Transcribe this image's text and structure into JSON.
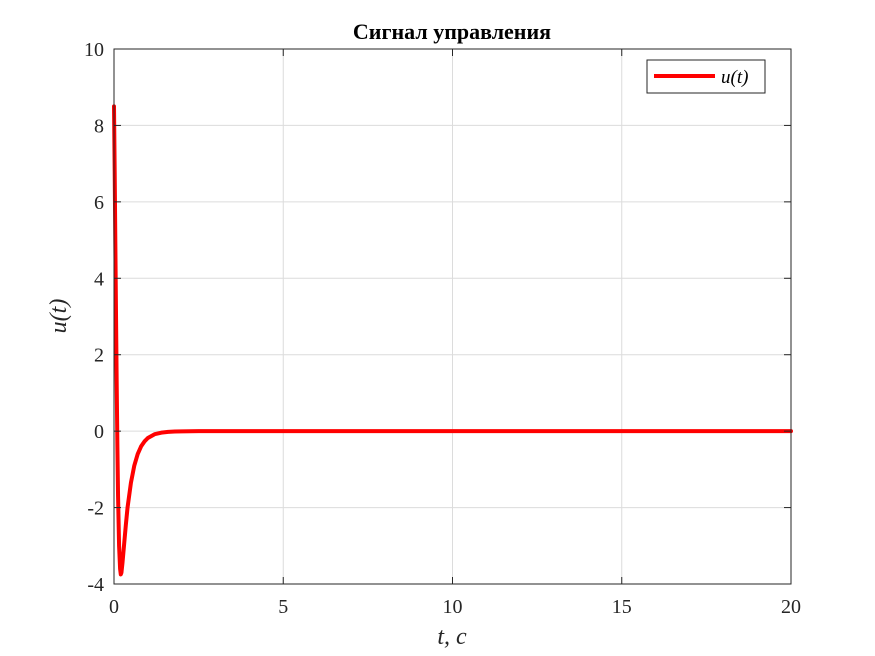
{
  "chart_data": {
    "type": "line",
    "title": "Сигнал управления",
    "xlabel": "t, c",
    "ylabel": "u(t)",
    "xlim": [
      0,
      20
    ],
    "ylim": [
      -4,
      10
    ],
    "xticks": [
      "0",
      "5",
      "10",
      "15",
      "20"
    ],
    "yticks": [
      "-4",
      "-2",
      "0",
      "2",
      "4",
      "6",
      "8",
      "10"
    ],
    "grid": true,
    "legend_position": "top-right",
    "series": [
      {
        "name": "u(t)",
        "color": "#ff0000",
        "x": [
          0,
          0.02,
          0.04,
          0.06,
          0.08,
          0.1,
          0.12,
          0.15,
          0.18,
          0.2,
          0.22,
          0.25,
          0.3,
          0.35,
          0.4,
          0.5,
          0.6,
          0.7,
          0.8,
          0.9,
          1.0,
          1.2,
          1.4,
          1.6,
          1.8,
          2.0,
          2.5,
          3.0,
          4.0,
          5,
          10,
          15,
          20
        ],
        "y": [
          8.5,
          6.8,
          4.9,
          3.0,
          1.2,
          -0.4,
          -1.7,
          -3.0,
          -3.6,
          -3.75,
          -3.7,
          -3.45,
          -2.95,
          -2.45,
          -2.0,
          -1.35,
          -0.9,
          -0.6,
          -0.4,
          -0.27,
          -0.18,
          -0.08,
          -0.04,
          -0.02,
          -0.01,
          -0.005,
          0,
          0,
          0,
          0,
          0,
          0,
          0
        ]
      }
    ]
  }
}
